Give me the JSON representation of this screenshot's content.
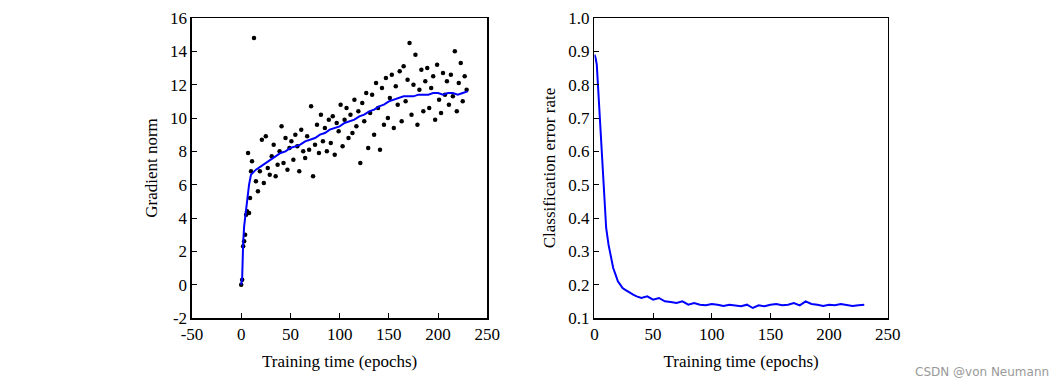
{
  "chart_data": [
    {
      "type": "scatter",
      "x_label": "Training time (epochs)",
      "y_label": "Gradient norm",
      "xlim": [
        -50,
        250
      ],
      "xticks": [
        -50,
        0,
        50,
        100,
        150,
        200,
        250
      ],
      "ylim": [
        -2,
        16
      ],
      "yticks": [
        -2,
        0,
        2,
        4,
        6,
        8,
        10,
        12,
        14,
        16
      ],
      "grid": false,
      "series": [
        {
          "type": "scatter",
          "marker": "circle",
          "color": "#000000",
          "x": [
            0,
            1,
            2,
            3,
            4,
            5,
            6,
            7,
            8,
            9,
            10,
            11,
            13,
            15,
            17,
            19,
            21,
            23,
            25,
            27,
            29,
            31,
            33,
            35,
            37,
            39,
            41,
            43,
            45,
            47,
            49,
            51,
            53,
            55,
            57,
            59,
            61,
            63,
            65,
            67,
            69,
            71,
            73,
            75,
            77,
            79,
            81,
            83,
            85,
            87,
            89,
            91,
            93,
            95,
            97,
            99,
            101,
            103,
            105,
            107,
            109,
            111,
            113,
            115,
            117,
            119,
            121,
            123,
            125,
            127,
            129,
            131,
            133,
            135,
            137,
            139,
            141,
            143,
            145,
            147,
            149,
            151,
            153,
            155,
            157,
            159,
            161,
            163,
            165,
            167,
            169,
            171,
            173,
            175,
            177,
            179,
            181,
            183,
            185,
            187,
            189,
            191,
            193,
            195,
            197,
            199,
            201,
            203,
            205,
            207,
            209,
            211,
            213,
            215,
            217,
            219,
            221,
            223,
            225,
            227,
            229
          ],
          "values": [
            0,
            0.3,
            2.3,
            2.6,
            3.0,
            4.2,
            4.4,
            7.9,
            4.3,
            5.2,
            6.8,
            7.4,
            14.8,
            6.2,
            5.6,
            6.8,
            8.7,
            6.1,
            8.9,
            7.0,
            6.6,
            7.7,
            8.4,
            6.5,
            7.2,
            8.0,
            9.5,
            7.3,
            8.8,
            6.9,
            8.2,
            8.6,
            7.5,
            9.0,
            8.3,
            6.8,
            9.3,
            8.0,
            7.6,
            8.9,
            8.1,
            10.7,
            6.5,
            8.4,
            9.6,
            7.9,
            10.2,
            8.6,
            9.4,
            8.0,
            9.9,
            8.5,
            10.1,
            7.8,
            9.7,
            9.2,
            10.8,
            8.3,
            9.9,
            10.6,
            8.8,
            10.2,
            9.1,
            11.1,
            9.5,
            10.4,
            7.3,
            10.9,
            9.8,
            11.5,
            8.2,
            10.3,
            11.4,
            9.0,
            12.1,
            10.6,
            8.1,
            11.8,
            9.6,
            12.4,
            10.0,
            11.2,
            12.6,
            9.4,
            11.9,
            10.8,
            12.8,
            9.8,
            13.1,
            11.0,
            12.3,
            14.5,
            10.2,
            12.0,
            13.8,
            9.6,
            11.7,
            12.9,
            10.4,
            12.2,
            13.0,
            10.6,
            11.8,
            12.5,
            9.9,
            13.2,
            11.1,
            10.3,
            12.7,
            11.4,
            12.2,
            10.8,
            12.6,
            11.3,
            14.0,
            10.4,
            12.1,
            13.3,
            11.0,
            12.5,
            11.7
          ]
        },
        {
          "type": "line",
          "line_style": "solid",
          "color": "#0000ff",
          "x": [
            0,
            1,
            2,
            3,
            5,
            8,
            10,
            15,
            20,
            25,
            30,
            35,
            40,
            45,
            50,
            55,
            60,
            65,
            70,
            75,
            80,
            85,
            90,
            95,
            100,
            105,
            110,
            115,
            120,
            125,
            130,
            135,
            140,
            145,
            150,
            155,
            160,
            165,
            170,
            175,
            180,
            185,
            190,
            195,
            200,
            205,
            210,
            215,
            220,
            225,
            230
          ],
          "values": [
            0,
            0.4,
            2.5,
            3.5,
            4.5,
            6.0,
            6.6,
            6.9,
            7.1,
            7.3,
            7.5,
            7.7,
            7.9,
            8.0,
            8.2,
            8.3,
            8.4,
            8.6,
            8.7,
            8.8,
            9.0,
            9.1,
            9.3,
            9.4,
            9.5,
            9.7,
            9.8,
            9.9,
            10.1,
            10.2,
            10.4,
            10.5,
            10.7,
            10.8,
            11.0,
            11.1,
            11.2,
            11.3,
            11.3,
            11.3,
            11.4,
            11.4,
            11.4,
            11.5,
            11.5,
            11.4,
            11.5,
            11.5,
            11.4,
            11.5,
            11.6
          ]
        }
      ]
    },
    {
      "type": "line",
      "x_label": "Training time (epochs)",
      "y_label": "Classification error rate",
      "xlim": [
        0,
        250
      ],
      "xticks": [
        0,
        50,
        100,
        150,
        200,
        250
      ],
      "ylim": [
        0.1,
        1
      ],
      "yticks": [
        0.1,
        0.2,
        0.3,
        0.4,
        0.5,
        0.6,
        0.7,
        0.8,
        0.9,
        {
          "value": 1,
          "label": "1.0"
        }
      ],
      "grid": false,
      "annotations": [
        {
          "text": "CSDN @von Neumann"
        }
      ],
      "series": [
        {
          "type": "line",
          "line_style": "solid",
          "color": "#0000ff",
          "x": [
            0,
            1,
            2,
            3,
            4,
            5,
            6,
            7,
            8,
            9,
            10,
            12,
            14,
            16,
            18,
            20,
            22,
            24,
            26,
            28,
            30,
            33,
            36,
            40,
            45,
            50,
            55,
            60,
            65,
            70,
            75,
            80,
            85,
            90,
            95,
            100,
            105,
            110,
            115,
            120,
            125,
            130,
            135,
            140,
            145,
            150,
            155,
            160,
            165,
            170,
            175,
            180,
            185,
            190,
            195,
            200,
            205,
            210,
            215,
            220,
            225,
            230
          ],
          "values": [
            0.89,
            0.88,
            0.86,
            0.8,
            0.72,
            0.65,
            0.62,
            0.55,
            0.48,
            0.42,
            0.37,
            0.32,
            0.28,
            0.25,
            0.23,
            0.21,
            0.2,
            0.19,
            0.185,
            0.18,
            0.175,
            0.17,
            0.165,
            0.16,
            0.165,
            0.155,
            0.16,
            0.15,
            0.148,
            0.145,
            0.15,
            0.14,
            0.145,
            0.14,
            0.138,
            0.142,
            0.14,
            0.136,
            0.14,
            0.138,
            0.135,
            0.14,
            0.13,
            0.138,
            0.135,
            0.14,
            0.142,
            0.138,
            0.14,
            0.145,
            0.138,
            0.15,
            0.142,
            0.14,
            0.136,
            0.14,
            0.138,
            0.142,
            0.14,
            0.136,
            0.138,
            0.14
          ]
        }
      ]
    }
  ]
}
